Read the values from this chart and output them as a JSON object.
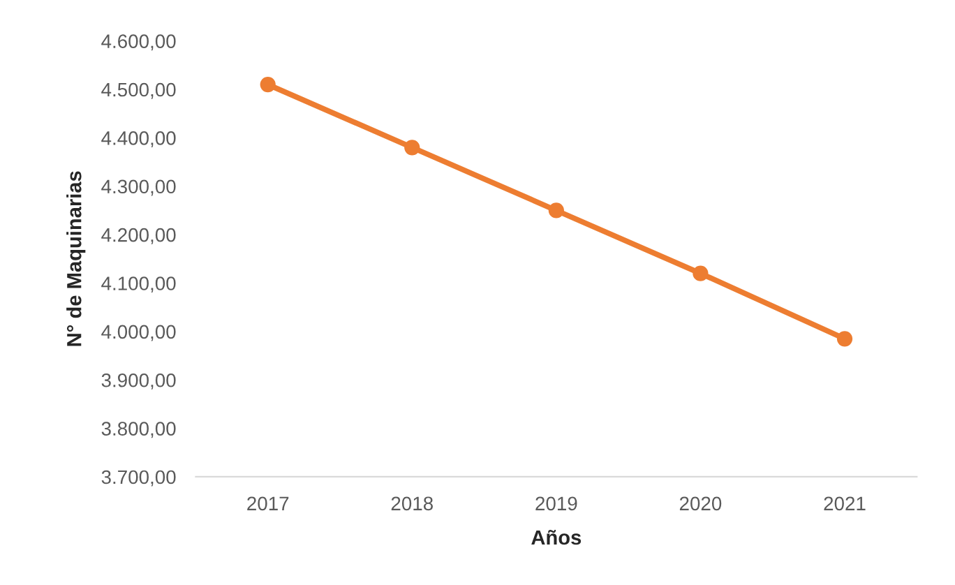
{
  "chart_data": {
    "type": "line",
    "xlabel": "Años",
    "ylabel": "N° de Maquinarias",
    "categories": [
      "2017",
      "2018",
      "2019",
      "2020",
      "2021"
    ],
    "series": [
      {
        "color": "#ed7d31",
        "values": [
          4510,
          4380,
          4250,
          4120,
          3985
        ]
      }
    ],
    "ylim": [
      3700,
      4600
    ],
    "yticks": [
      {
        "value": 3700,
        "label": "3.700,00"
      },
      {
        "value": 3800,
        "label": "3.800,00"
      },
      {
        "value": 3900,
        "label": "3.900,00"
      },
      {
        "value": 4000,
        "label": "4.000,00"
      },
      {
        "value": 4100,
        "label": "4.100,00"
      },
      {
        "value": 4200,
        "label": "4.200,00"
      },
      {
        "value": 4300,
        "label": "4.300,00"
      },
      {
        "value": 4400,
        "label": "4.400,00"
      },
      {
        "value": 4500,
        "label": "4.500,00"
      },
      {
        "value": 4600,
        "label": "4.600,00"
      }
    ],
    "grid": false,
    "marker": "circle",
    "line_style": "solid"
  }
}
